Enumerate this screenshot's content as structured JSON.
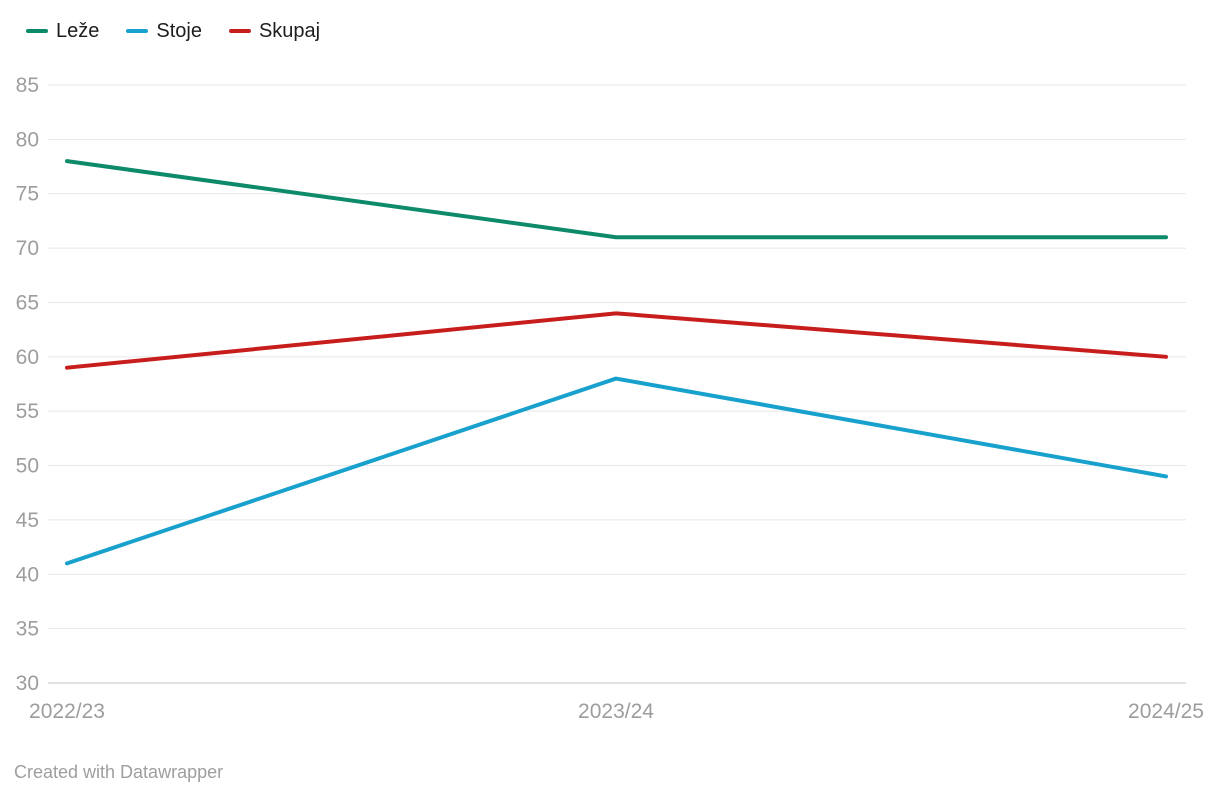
{
  "chart_data": {
    "type": "line",
    "categories": [
      "2022/23",
      "2023/24",
      "2024/25"
    ],
    "series": [
      {
        "name": "Leže",
        "color": "#0d8a6a",
        "values": [
          78,
          71,
          71
        ]
      },
      {
        "name": "Stoje",
        "color": "#18a1cd",
        "values": [
          41,
          58,
          49
        ]
      },
      {
        "name": "Skupaj",
        "color": "#c71e1d",
        "values": [
          59,
          64,
          60
        ]
      }
    ],
    "y_axis": {
      "min": 30,
      "max": 85,
      "step": 5,
      "ticks": [
        85,
        80,
        75,
        70,
        65,
        60,
        55,
        50,
        45,
        40,
        35,
        30
      ]
    },
    "grid": true,
    "legend_position": "top-left",
    "title": "",
    "xlabel": "",
    "ylabel": ""
  },
  "footer": {
    "text": "Created with Datawrapper"
  },
  "colors": {
    "background": "#ffffff",
    "gridline": "#e8e8e8",
    "axis_text": "#9d9d9d",
    "legend_text": "#1d1d1d",
    "footer_text": "#9e9e9e"
  }
}
